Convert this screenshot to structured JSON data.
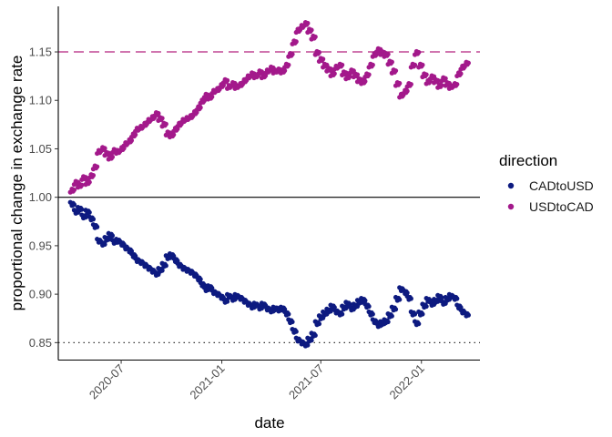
{
  "chart_data": {
    "type": "scatter",
    "xlabel": "date",
    "ylabel": "proportional change in exchange rate",
    "x_type": "date",
    "xlim": [
      "2020-03-08",
      "2022-04-18"
    ],
    "ylim": [
      0.832,
      1.197
    ],
    "x_ticks": [
      {
        "value": "2020-07-01",
        "label": "2020-07"
      },
      {
        "value": "2021-01-01",
        "label": "2021-01"
      },
      {
        "value": "2021-07-01",
        "label": "2021-07"
      },
      {
        "value": "2022-01-01",
        "label": "2022-01"
      }
    ],
    "y_ticks": [
      {
        "value": 0.85,
        "label": "0.85"
      },
      {
        "value": 0.9,
        "label": "0.90"
      },
      {
        "value": 0.95,
        "label": "0.95"
      },
      {
        "value": 1.0,
        "label": "1.00"
      },
      {
        "value": 1.05,
        "label": "1.05"
      },
      {
        "value": 1.1,
        "label": "1.10"
      },
      {
        "value": 1.15,
        "label": "1.15"
      }
    ],
    "grid": false,
    "legend": {
      "title": "direction",
      "position": "right"
    },
    "reference_lines": [
      {
        "y": 1.0,
        "style": "solid",
        "color": "#000000"
      },
      {
        "y": 1.15,
        "style": "dashed",
        "color": "#b5237f"
      },
      {
        "y": 0.85,
        "style": "dotted",
        "color": "#333333"
      }
    ],
    "series": [
      {
        "name": "CADtoUSD",
        "color": "#0d1a80",
        "points": [
          [
            "2020-04-01",
            0.993
          ],
          [
            "2020-04-08",
            0.985
          ],
          [
            "2020-04-15",
            0.988
          ],
          [
            "2020-04-22",
            0.98
          ],
          [
            "2020-04-29",
            0.985
          ],
          [
            "2020-05-06",
            0.978
          ],
          [
            "2020-05-13",
            0.97
          ],
          [
            "2020-05-20",
            0.955
          ],
          [
            "2020-05-27",
            0.952
          ],
          [
            "2020-06-03",
            0.957
          ],
          [
            "2020-06-10",
            0.961
          ],
          [
            "2020-06-17",
            0.954
          ],
          [
            "2020-06-24",
            0.955
          ],
          [
            "2020-07-01",
            0.952
          ],
          [
            "2020-07-08",
            0.948
          ],
          [
            "2020-07-15",
            0.945
          ],
          [
            "2020-07-22",
            0.94
          ],
          [
            "2020-07-29",
            0.935
          ],
          [
            "2020-08-05",
            0.933
          ],
          [
            "2020-08-12",
            0.93
          ],
          [
            "2020-08-19",
            0.927
          ],
          [
            "2020-08-26",
            0.924
          ],
          [
            "2020-09-02",
            0.921
          ],
          [
            "2020-09-09",
            0.925
          ],
          [
            "2020-09-16",
            0.93
          ],
          [
            "2020-09-23",
            0.938
          ],
          [
            "2020-09-30",
            0.94
          ],
          [
            "2020-10-07",
            0.935
          ],
          [
            "2020-10-14",
            0.93
          ],
          [
            "2020-10-21",
            0.927
          ],
          [
            "2020-10-28",
            0.925
          ],
          [
            "2020-11-04",
            0.923
          ],
          [
            "2020-11-11",
            0.92
          ],
          [
            "2020-11-18",
            0.916
          ],
          [
            "2020-11-25",
            0.91
          ],
          [
            "2020-12-02",
            0.905
          ],
          [
            "2020-12-09",
            0.907
          ],
          [
            "2020-12-16",
            0.902
          ],
          [
            "2020-12-23",
            0.9
          ],
          [
            "2020-12-30",
            0.897
          ],
          [
            "2021-01-06",
            0.893
          ],
          [
            "2021-01-13",
            0.898
          ],
          [
            "2021-01-20",
            0.895
          ],
          [
            "2021-01-27",
            0.898
          ],
          [
            "2021-02-03",
            0.896
          ],
          [
            "2021-02-10",
            0.893
          ],
          [
            "2021-02-17",
            0.89
          ],
          [
            "2021-02-24",
            0.887
          ],
          [
            "2021-03-03",
            0.889
          ],
          [
            "2021-03-10",
            0.886
          ],
          [
            "2021-03-17",
            0.889
          ],
          [
            "2021-03-24",
            0.885
          ],
          [
            "2021-03-31",
            0.883
          ],
          [
            "2021-04-07",
            0.885
          ],
          [
            "2021-04-14",
            0.884
          ],
          [
            "2021-04-21",
            0.885
          ],
          [
            "2021-04-28",
            0.88
          ],
          [
            "2021-05-05",
            0.872
          ],
          [
            "2021-05-12",
            0.862
          ],
          [
            "2021-05-19",
            0.853
          ],
          [
            "2021-05-26",
            0.85
          ],
          [
            "2021-06-02",
            0.848
          ],
          [
            "2021-06-09",
            0.853
          ],
          [
            "2021-06-16",
            0.858
          ],
          [
            "2021-06-23",
            0.87
          ],
          [
            "2021-06-30",
            0.876
          ],
          [
            "2021-07-07",
            0.88
          ],
          [
            "2021-07-14",
            0.883
          ],
          [
            "2021-07-21",
            0.887
          ],
          [
            "2021-07-28",
            0.882
          ],
          [
            "2021-08-04",
            0.88
          ],
          [
            "2021-08-11",
            0.886
          ],
          [
            "2021-08-18",
            0.89
          ],
          [
            "2021-08-25",
            0.885
          ],
          [
            "2021-09-01",
            0.888
          ],
          [
            "2021-09-08",
            0.892
          ],
          [
            "2021-09-15",
            0.894
          ],
          [
            "2021-09-22",
            0.888
          ],
          [
            "2021-09-29",
            0.88
          ],
          [
            "2021-10-06",
            0.872
          ],
          [
            "2021-10-13",
            0.868
          ],
          [
            "2021-10-20",
            0.87
          ],
          [
            "2021-10-27",
            0.872
          ],
          [
            "2021-11-03",
            0.878
          ],
          [
            "2021-11-10",
            0.885
          ],
          [
            "2021-11-17",
            0.895
          ],
          [
            "2021-11-24",
            0.905
          ],
          [
            "2021-12-01",
            0.902
          ],
          [
            "2021-12-08",
            0.896
          ],
          [
            "2021-12-15",
            0.88
          ],
          [
            "2021-12-22",
            0.87
          ],
          [
            "2021-12-29",
            0.88
          ],
          [
            "2022-01-05",
            0.888
          ],
          [
            "2022-01-12",
            0.894
          ],
          [
            "2022-01-19",
            0.89
          ],
          [
            "2022-01-26",
            0.893
          ],
          [
            "2022-02-02",
            0.897
          ],
          [
            "2022-02-09",
            0.891
          ],
          [
            "2022-02-16",
            0.895
          ],
          [
            "2022-02-23",
            0.898
          ],
          [
            "2022-03-02",
            0.896
          ],
          [
            "2022-03-09",
            0.887
          ],
          [
            "2022-03-16",
            0.882
          ],
          [
            "2022-03-23",
            0.879
          ]
        ]
      },
      {
        "name": "USDtoCAD",
        "color": "#a3198b",
        "points": [
          [
            "2020-04-01",
            1.007
          ],
          [
            "2020-04-08",
            1.015
          ],
          [
            "2020-04-15",
            1.012
          ],
          [
            "2020-04-22",
            1.02
          ],
          [
            "2020-04-29",
            1.015
          ],
          [
            "2020-05-06",
            1.022
          ],
          [
            "2020-05-13",
            1.031
          ],
          [
            "2020-05-20",
            1.047
          ],
          [
            "2020-05-27",
            1.05
          ],
          [
            "2020-06-03",
            1.045
          ],
          [
            "2020-06-10",
            1.041
          ],
          [
            "2020-06-17",
            1.048
          ],
          [
            "2020-06-24",
            1.047
          ],
          [
            "2020-07-01",
            1.05
          ],
          [
            "2020-07-08",
            1.055
          ],
          [
            "2020-07-15",
            1.058
          ],
          [
            "2020-07-22",
            1.064
          ],
          [
            "2020-07-29",
            1.07
          ],
          [
            "2020-08-05",
            1.072
          ],
          [
            "2020-08-12",
            1.075
          ],
          [
            "2020-08-19",
            1.079
          ],
          [
            "2020-08-26",
            1.082
          ],
          [
            "2020-09-02",
            1.086
          ],
          [
            "2020-09-09",
            1.081
          ],
          [
            "2020-09-16",
            1.075
          ],
          [
            "2020-09-23",
            1.066
          ],
          [
            "2020-09-30",
            1.064
          ],
          [
            "2020-10-07",
            1.07
          ],
          [
            "2020-10-14",
            1.075
          ],
          [
            "2020-10-21",
            1.079
          ],
          [
            "2020-10-28",
            1.081
          ],
          [
            "2020-11-04",
            1.083
          ],
          [
            "2020-11-11",
            1.087
          ],
          [
            "2020-11-18",
            1.092
          ],
          [
            "2020-11-25",
            1.099
          ],
          [
            "2020-12-02",
            1.105
          ],
          [
            "2020-12-09",
            1.103
          ],
          [
            "2020-12-16",
            1.109
          ],
          [
            "2020-12-23",
            1.111
          ],
          [
            "2020-12-30",
            1.115
          ],
          [
            "2021-01-06",
            1.12
          ],
          [
            "2021-01-13",
            1.114
          ],
          [
            "2021-01-20",
            1.117
          ],
          [
            "2021-01-27",
            1.114
          ],
          [
            "2021-02-03",
            1.116
          ],
          [
            "2021-02-10",
            1.12
          ],
          [
            "2021-02-17",
            1.124
          ],
          [
            "2021-02-24",
            1.127
          ],
          [
            "2021-03-03",
            1.125
          ],
          [
            "2021-03-10",
            1.129
          ],
          [
            "2021-03-17",
            1.125
          ],
          [
            "2021-03-24",
            1.13
          ],
          [
            "2021-03-31",
            1.133
          ],
          [
            "2021-04-07",
            1.13
          ],
          [
            "2021-04-14",
            1.131
          ],
          [
            "2021-04-21",
            1.13
          ],
          [
            "2021-04-28",
            1.136
          ],
          [
            "2021-05-05",
            1.147
          ],
          [
            "2021-05-12",
            1.16
          ],
          [
            "2021-05-19",
            1.172
          ],
          [
            "2021-05-26",
            1.176
          ],
          [
            "2021-06-02",
            1.179
          ],
          [
            "2021-06-09",
            1.172
          ],
          [
            "2021-06-16",
            1.165
          ],
          [
            "2021-06-23",
            1.149
          ],
          [
            "2021-06-30",
            1.142
          ],
          [
            "2021-07-07",
            1.136
          ],
          [
            "2021-07-14",
            1.132
          ],
          [
            "2021-07-21",
            1.127
          ],
          [
            "2021-07-28",
            1.134
          ],
          [
            "2021-08-04",
            1.136
          ],
          [
            "2021-08-11",
            1.128
          ],
          [
            "2021-08-18",
            1.124
          ],
          [
            "2021-08-25",
            1.13
          ],
          [
            "2021-09-01",
            1.126
          ],
          [
            "2021-09-08",
            1.121
          ],
          [
            "2021-09-15",
            1.119
          ],
          [
            "2021-09-22",
            1.126
          ],
          [
            "2021-09-29",
            1.136
          ],
          [
            "2021-10-06",
            1.147
          ],
          [
            "2021-10-13",
            1.152
          ],
          [
            "2021-10-20",
            1.149
          ],
          [
            "2021-10-27",
            1.147
          ],
          [
            "2021-11-03",
            1.139
          ],
          [
            "2021-11-10",
            1.13
          ],
          [
            "2021-11-17",
            1.117
          ],
          [
            "2021-11-24",
            1.105
          ],
          [
            "2021-12-01",
            1.109
          ],
          [
            "2021-12-08",
            1.116
          ],
          [
            "2021-12-15",
            1.136
          ],
          [
            "2021-12-22",
            1.149
          ],
          [
            "2021-12-29",
            1.136
          ],
          [
            "2022-01-05",
            1.126
          ],
          [
            "2022-01-12",
            1.119
          ],
          [
            "2022-01-19",
            1.124
          ],
          [
            "2022-01-26",
            1.12
          ],
          [
            "2022-02-02",
            1.115
          ],
          [
            "2022-02-09",
            1.122
          ],
          [
            "2022-02-16",
            1.117
          ],
          [
            "2022-02-23",
            1.114
          ],
          [
            "2022-03-02",
            1.116
          ],
          [
            "2022-03-09",
            1.127
          ],
          [
            "2022-03-16",
            1.134
          ],
          [
            "2022-03-23",
            1.138
          ]
        ]
      }
    ]
  }
}
